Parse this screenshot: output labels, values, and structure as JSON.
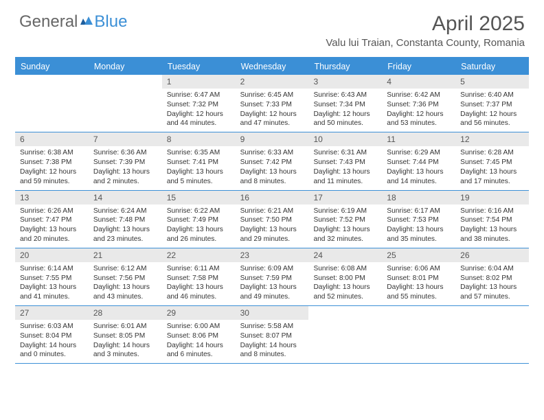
{
  "logo": {
    "text1": "General",
    "text2": "Blue"
  },
  "title": {
    "month": "April 2025",
    "location": "Valu lui Traian, Constanta County, Romania"
  },
  "colors": {
    "accent": "#3b8fd6",
    "dayhead_bg": "#e9e9e9",
    "text": "#333333"
  },
  "dayNames": [
    "Sunday",
    "Monday",
    "Tuesday",
    "Wednesday",
    "Thursday",
    "Friday",
    "Saturday"
  ],
  "weeks": [
    [
      null,
      null,
      {
        "n": "1",
        "sr": "Sunrise: 6:47 AM",
        "ss": "Sunset: 7:32 PM",
        "dl": "Daylight: 12 hours and 44 minutes."
      },
      {
        "n": "2",
        "sr": "Sunrise: 6:45 AM",
        "ss": "Sunset: 7:33 PM",
        "dl": "Daylight: 12 hours and 47 minutes."
      },
      {
        "n": "3",
        "sr": "Sunrise: 6:43 AM",
        "ss": "Sunset: 7:34 PM",
        "dl": "Daylight: 12 hours and 50 minutes."
      },
      {
        "n": "4",
        "sr": "Sunrise: 6:42 AM",
        "ss": "Sunset: 7:36 PM",
        "dl": "Daylight: 12 hours and 53 minutes."
      },
      {
        "n": "5",
        "sr": "Sunrise: 6:40 AM",
        "ss": "Sunset: 7:37 PM",
        "dl": "Daylight: 12 hours and 56 minutes."
      }
    ],
    [
      {
        "n": "6",
        "sr": "Sunrise: 6:38 AM",
        "ss": "Sunset: 7:38 PM",
        "dl": "Daylight: 12 hours and 59 minutes."
      },
      {
        "n": "7",
        "sr": "Sunrise: 6:36 AM",
        "ss": "Sunset: 7:39 PM",
        "dl": "Daylight: 13 hours and 2 minutes."
      },
      {
        "n": "8",
        "sr": "Sunrise: 6:35 AM",
        "ss": "Sunset: 7:41 PM",
        "dl": "Daylight: 13 hours and 5 minutes."
      },
      {
        "n": "9",
        "sr": "Sunrise: 6:33 AM",
        "ss": "Sunset: 7:42 PM",
        "dl": "Daylight: 13 hours and 8 minutes."
      },
      {
        "n": "10",
        "sr": "Sunrise: 6:31 AM",
        "ss": "Sunset: 7:43 PM",
        "dl": "Daylight: 13 hours and 11 minutes."
      },
      {
        "n": "11",
        "sr": "Sunrise: 6:29 AM",
        "ss": "Sunset: 7:44 PM",
        "dl": "Daylight: 13 hours and 14 minutes."
      },
      {
        "n": "12",
        "sr": "Sunrise: 6:28 AM",
        "ss": "Sunset: 7:45 PM",
        "dl": "Daylight: 13 hours and 17 minutes."
      }
    ],
    [
      {
        "n": "13",
        "sr": "Sunrise: 6:26 AM",
        "ss": "Sunset: 7:47 PM",
        "dl": "Daylight: 13 hours and 20 minutes."
      },
      {
        "n": "14",
        "sr": "Sunrise: 6:24 AM",
        "ss": "Sunset: 7:48 PM",
        "dl": "Daylight: 13 hours and 23 minutes."
      },
      {
        "n": "15",
        "sr": "Sunrise: 6:22 AM",
        "ss": "Sunset: 7:49 PM",
        "dl": "Daylight: 13 hours and 26 minutes."
      },
      {
        "n": "16",
        "sr": "Sunrise: 6:21 AM",
        "ss": "Sunset: 7:50 PM",
        "dl": "Daylight: 13 hours and 29 minutes."
      },
      {
        "n": "17",
        "sr": "Sunrise: 6:19 AM",
        "ss": "Sunset: 7:52 PM",
        "dl": "Daylight: 13 hours and 32 minutes."
      },
      {
        "n": "18",
        "sr": "Sunrise: 6:17 AM",
        "ss": "Sunset: 7:53 PM",
        "dl": "Daylight: 13 hours and 35 minutes."
      },
      {
        "n": "19",
        "sr": "Sunrise: 6:16 AM",
        "ss": "Sunset: 7:54 PM",
        "dl": "Daylight: 13 hours and 38 minutes."
      }
    ],
    [
      {
        "n": "20",
        "sr": "Sunrise: 6:14 AM",
        "ss": "Sunset: 7:55 PM",
        "dl": "Daylight: 13 hours and 41 minutes."
      },
      {
        "n": "21",
        "sr": "Sunrise: 6:12 AM",
        "ss": "Sunset: 7:56 PM",
        "dl": "Daylight: 13 hours and 43 minutes."
      },
      {
        "n": "22",
        "sr": "Sunrise: 6:11 AM",
        "ss": "Sunset: 7:58 PM",
        "dl": "Daylight: 13 hours and 46 minutes."
      },
      {
        "n": "23",
        "sr": "Sunrise: 6:09 AM",
        "ss": "Sunset: 7:59 PM",
        "dl": "Daylight: 13 hours and 49 minutes."
      },
      {
        "n": "24",
        "sr": "Sunrise: 6:08 AM",
        "ss": "Sunset: 8:00 PM",
        "dl": "Daylight: 13 hours and 52 minutes."
      },
      {
        "n": "25",
        "sr": "Sunrise: 6:06 AM",
        "ss": "Sunset: 8:01 PM",
        "dl": "Daylight: 13 hours and 55 minutes."
      },
      {
        "n": "26",
        "sr": "Sunrise: 6:04 AM",
        "ss": "Sunset: 8:02 PM",
        "dl": "Daylight: 13 hours and 57 minutes."
      }
    ],
    [
      {
        "n": "27",
        "sr": "Sunrise: 6:03 AM",
        "ss": "Sunset: 8:04 PM",
        "dl": "Daylight: 14 hours and 0 minutes."
      },
      {
        "n": "28",
        "sr": "Sunrise: 6:01 AM",
        "ss": "Sunset: 8:05 PM",
        "dl": "Daylight: 14 hours and 3 minutes."
      },
      {
        "n": "29",
        "sr": "Sunrise: 6:00 AM",
        "ss": "Sunset: 8:06 PM",
        "dl": "Daylight: 14 hours and 6 minutes."
      },
      {
        "n": "30",
        "sr": "Sunrise: 5:58 AM",
        "ss": "Sunset: 8:07 PM",
        "dl": "Daylight: 14 hours and 8 minutes."
      },
      null,
      null,
      null
    ]
  ]
}
